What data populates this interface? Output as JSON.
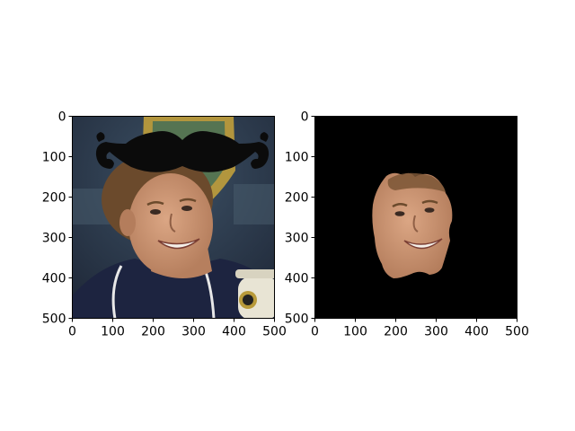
{
  "chart_data": [
    {
      "type": "image",
      "title": "",
      "xlabel": "",
      "ylabel": "",
      "xlim": [
        0,
        500
      ],
      "ylim": [
        500,
        0
      ],
      "xticks": [
        0,
        100,
        200,
        300,
        400,
        500
      ],
      "yticks": [
        0,
        100,
        200,
        300,
        400,
        500
      ],
      "xtick_labels": [
        "0",
        "100",
        "200",
        "300",
        "400",
        "500"
      ],
      "ytick_labels": [
        "0",
        "100",
        "200",
        "300",
        "400",
        "500"
      ],
      "content": "photo-with-mustache-overlay",
      "grid": false
    },
    {
      "type": "image",
      "title": "",
      "xlabel": "",
      "ylabel": "",
      "xlim": [
        0,
        500
      ],
      "ylim": [
        500,
        0
      ],
      "xticks": [
        0,
        100,
        200,
        300,
        400,
        500
      ],
      "yticks": [
        0,
        100,
        200,
        300,
        400,
        500
      ],
      "xtick_labels": [
        "0",
        "100",
        "200",
        "300",
        "400",
        "500"
      ],
      "ytick_labels": [
        "0",
        "100",
        "200",
        "300",
        "400",
        "500"
      ],
      "content": "face-mask-on-black",
      "grid": false
    }
  ],
  "colors": {
    "background": "#ffffff",
    "axis": "#000000",
    "mask_background": "#000000",
    "skin": "#c99572",
    "hair": "#6b4a2c",
    "jacket": "#1d2440",
    "mustache": "#0b0b0b",
    "backdrop": "#2e3a4f",
    "banner": "#c9a53a"
  }
}
